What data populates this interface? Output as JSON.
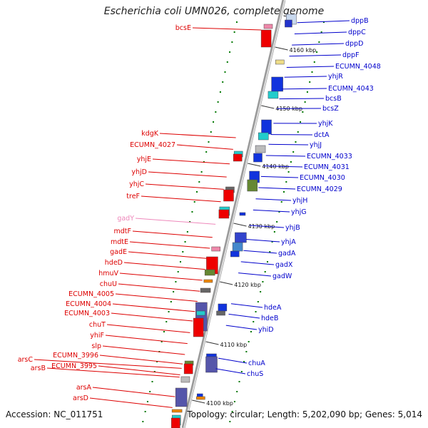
{
  "header": {
    "title": "Escherichia coli UMN026, complete genome"
  },
  "footer": {
    "accession": "Accession: NC_011751",
    "summary": "Topology: circular; Length: 5,202,090 bp; Genes: 5,014"
  },
  "colors": {
    "left_label": "#dd0000",
    "right_label": "#0000cc",
    "pseudo_label": "#ee88bb",
    "backbone": "#bbbbbb",
    "tick": "#007700"
  },
  "ticks": [
    {
      "label": "4160 kbp"
    },
    {
      "label": "4150 kbp"
    },
    {
      "label": "4140 kbp"
    },
    {
      "label": "4130 kbp"
    },
    {
      "label": "4120 kbp"
    },
    {
      "label": "4110 kbp"
    },
    {
      "label": "4100 kbp"
    }
  ],
  "left_labels": [
    {
      "text": "bcsE"
    },
    {
      "text": "kdgK"
    },
    {
      "text": "ECUMN_4027"
    },
    {
      "text": "yhjE"
    },
    {
      "text": "yhjD"
    },
    {
      "text": "yhjC"
    },
    {
      "text": "treF"
    },
    {
      "text": "gadY"
    },
    {
      "text": "mdtF"
    },
    {
      "text": "mdtE"
    },
    {
      "text": "gadE"
    },
    {
      "text": "hdeD"
    },
    {
      "text": "hmuV"
    },
    {
      "text": "chuU"
    },
    {
      "text": "ECUMN_4005"
    },
    {
      "text": "ECUMN_4004"
    },
    {
      "text": "ECUMN_4003"
    },
    {
      "text": "chuT"
    },
    {
      "text": "yhiF"
    },
    {
      "text": "slp"
    },
    {
      "text": "ECUMN_3996"
    },
    {
      "text": "ECUMN_3995"
    },
    {
      "text": "arsC"
    },
    {
      "text": "arsB"
    },
    {
      "text": "arsA"
    },
    {
      "text": "arsD"
    }
  ],
  "right_labels": [
    {
      "text": "dppB"
    },
    {
      "text": "dppC"
    },
    {
      "text": "dppD"
    },
    {
      "text": "dppF"
    },
    {
      "text": "ECUMN_4048"
    },
    {
      "text": "yhjR"
    },
    {
      "text": "ECUMN_4043"
    },
    {
      "text": "bcsB"
    },
    {
      "text": "bcsZ"
    },
    {
      "text": "yhjK"
    },
    {
      "text": "dctA"
    },
    {
      "text": "yhjJ"
    },
    {
      "text": "ECUMN_4033"
    },
    {
      "text": "ECUMN_4031"
    },
    {
      "text": "ECUMN_4030"
    },
    {
      "text": "ECUMN_4029"
    },
    {
      "text": "yhjH"
    },
    {
      "text": "yhjG"
    },
    {
      "text": "yhjB"
    },
    {
      "text": "yhjA"
    },
    {
      "text": "gadA"
    },
    {
      "text": "gadX"
    },
    {
      "text": "gadW"
    },
    {
      "text": "hdeA"
    },
    {
      "text": "hdeB"
    },
    {
      "text": "yhiD"
    },
    {
      "text": "chuA"
    },
    {
      "text": "chuS"
    }
  ]
}
